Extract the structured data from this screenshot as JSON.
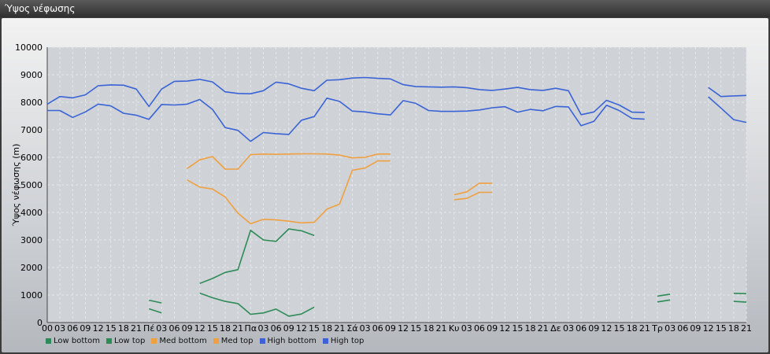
{
  "window": {
    "title": "Ύψος νέφωσης"
  },
  "chart_data": {
    "type": "line",
    "title": "",
    "ylabel": "Ύψος νέφωσης (m)",
    "xlabel": "",
    "ylim": [
      0,
      10000
    ],
    "yticks": [
      "0",
      "1000",
      "2000",
      "3000",
      "4000",
      "5000",
      "6000",
      "7000",
      "8000",
      "9000",
      "10000"
    ],
    "categories": [
      "00",
      "03",
      "06",
      "09",
      "12",
      "15",
      "18",
      "21",
      "Πέ",
      "03",
      "06",
      "09",
      "12",
      "15",
      "18",
      "21",
      "Πα",
      "03",
      "06",
      "09",
      "12",
      "15",
      "18",
      "21",
      "Σά",
      "03",
      "06",
      "09",
      "12",
      "15",
      "18",
      "21",
      "Κυ",
      "03",
      "06",
      "09",
      "12",
      "15",
      "18",
      "21",
      "Δε",
      "03",
      "06",
      "09",
      "12",
      "15",
      "18",
      "21",
      "Τρ",
      "03",
      "06",
      "09",
      "12",
      "15",
      "18",
      "21"
    ],
    "grid": true,
    "legend_position": "bottom-left",
    "series": [
      {
        "name": "Low bottom",
        "color": "#2e8b57",
        "values": [
          null,
          null,
          null,
          null,
          null,
          null,
          null,
          null,
          500,
          350,
          null,
          null,
          1070,
          900,
          770,
          690,
          300,
          350,
          490,
          230,
          310,
          560,
          null,
          null,
          null,
          null,
          null,
          null,
          null,
          null,
          null,
          null,
          null,
          null,
          null,
          null,
          null,
          null,
          null,
          null,
          null,
          null,
          null,
          null,
          null,
          null,
          null,
          null,
          750,
          820,
          null,
          null,
          null,
          null,
          770,
          740
        ]
      },
      {
        "name": "Low top",
        "color": "#2e8b57",
        "values": [
          null,
          null,
          null,
          null,
          null,
          null,
          null,
          null,
          810,
          710,
          null,
          null,
          1420,
          1600,
          1820,
          1920,
          3350,
          3000,
          2950,
          3400,
          3330,
          3160,
          null,
          null,
          null,
          null,
          null,
          null,
          null,
          null,
          null,
          null,
          null,
          null,
          null,
          null,
          null,
          null,
          null,
          null,
          null,
          null,
          null,
          null,
          null,
          null,
          null,
          null,
          960,
          1030,
          null,
          null,
          null,
          null,
          1060,
          1050
        ]
      },
      {
        "name": "Med bottom",
        "color": "#f0a040",
        "values": [
          null,
          null,
          null,
          null,
          null,
          null,
          null,
          null,
          null,
          null,
          null,
          5180,
          4920,
          4850,
          4560,
          3970,
          3590,
          3750,
          3730,
          3680,
          3620,
          3640,
          4120,
          4300,
          5530,
          5610,
          5870,
          5870,
          null,
          null,
          null,
          null,
          4460,
          4510,
          4730,
          4730,
          null,
          null,
          null,
          null,
          null,
          null,
          null,
          null,
          null,
          null,
          null,
          null,
          null,
          null,
          null,
          null,
          null,
          null,
          null,
          null
        ]
      },
      {
        "name": "Med top",
        "color": "#f0a040",
        "values": [
          null,
          null,
          null,
          null,
          null,
          null,
          null,
          null,
          null,
          null,
          null,
          5590,
          5910,
          6030,
          5570,
          5570,
          6100,
          6120,
          6110,
          6120,
          6130,
          6130,
          6120,
          6080,
          5980,
          6000,
          6120,
          6120,
          null,
          null,
          null,
          null,
          4640,
          4750,
          5060,
          5060,
          null,
          null,
          null,
          null,
          null,
          null,
          null,
          null,
          null,
          null,
          null,
          null,
          null,
          null,
          null,
          null,
          null,
          null,
          null,
          null
        ]
      },
      {
        "name": "High bottom",
        "color": "#3a63d6",
        "values": [
          7700,
          7700,
          7450,
          7650,
          7930,
          7870,
          7600,
          7530,
          7380,
          7920,
          7900,
          7930,
          8100,
          7740,
          7080,
          6980,
          6580,
          6900,
          6860,
          6830,
          7350,
          7480,
          8150,
          8030,
          7680,
          7650,
          7580,
          7540,
          8060,
          7960,
          7700,
          7670,
          7670,
          7680,
          7720,
          7800,
          7840,
          7640,
          7740,
          7690,
          7850,
          7830,
          7150,
          7310,
          7890,
          7700,
          7410,
          7390,
          null,
          null,
          null,
          null,
          8200,
          7790,
          7370,
          7270
        ]
      },
      {
        "name": "High top",
        "color": "#3a63d6",
        "values": [
          7930,
          8210,
          8160,
          8270,
          8600,
          8630,
          8620,
          8480,
          7850,
          8480,
          8760,
          8770,
          8830,
          8740,
          8380,
          8320,
          8310,
          8420,
          8730,
          8670,
          8510,
          8420,
          8800,
          8820,
          8880,
          8900,
          8870,
          8850,
          8640,
          8570,
          8560,
          8550,
          8560,
          8530,
          8460,
          8430,
          8480,
          8540,
          8460,
          8430,
          8510,
          8420,
          7550,
          7650,
          8070,
          7900,
          7640,
          7630,
          null,
          null,
          null,
          null,
          8540,
          8210,
          8230,
          8250
        ]
      }
    ]
  }
}
